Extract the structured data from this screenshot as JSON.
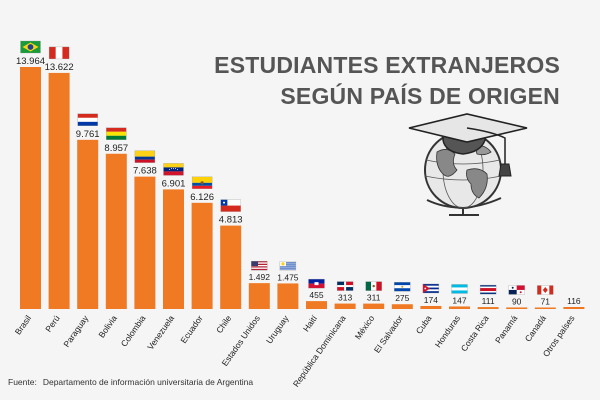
{
  "chart_data": {
    "type": "bar",
    "title_lines": [
      "ESTUDIANTES EXTRANJEROS",
      "SEGÚN PAÍS DE ORIGEN"
    ],
    "categories": [
      "Brasil",
      "Perú",
      "Paraguay",
      "Bolivia",
      "Colombia",
      "Venezuela",
      "Ecuador",
      "Chile",
      "Estados Unidos",
      "Uruguay",
      "Haití",
      "República Dominicana",
      "México",
      "El Salvador",
      "Cuba",
      "Honduras",
      "Costa Rica",
      "Panamá",
      "Canadá",
      "Otros países"
    ],
    "values": [
      13964,
      13622,
      9761,
      8957,
      7638,
      6901,
      6126,
      4813,
      1492,
      1475,
      455,
      313,
      311,
      275,
      174,
      147,
      111,
      90,
      71,
      116
    ],
    "value_labels": [
      "13.964",
      "13.622",
      "9.761",
      "8.957",
      "7.638",
      "6.901",
      "6.126",
      "4.813",
      "1.492",
      "1.475",
      "455",
      "313",
      "311",
      "275",
      "174",
      "147",
      "111",
      "90",
      "71",
      "116"
    ],
    "flags": [
      "flag-brazil",
      "flag-peru",
      "flag-paraguay",
      "flag-bolivia",
      "flag-colombia",
      "flag-venezuela",
      "flag-ecuador",
      "flag-chile",
      "flag-usa",
      "flag-uruguay",
      "flag-haiti",
      "flag-dominican-republic",
      "flag-mexico",
      "flag-el-salvador",
      "flag-cuba",
      "flag-honduras",
      "flag-costa-rica",
      "flag-panama",
      "flag-canada",
      ""
    ],
    "ylim": [
      0,
      14500
    ],
    "bar_color": "#f07a23",
    "grid": false,
    "legend": "none"
  },
  "source": {
    "label": "Fuente:",
    "text": "Departamento de información universitaria de Argentina"
  },
  "illustration": "globe-graduation-cap-icon"
}
